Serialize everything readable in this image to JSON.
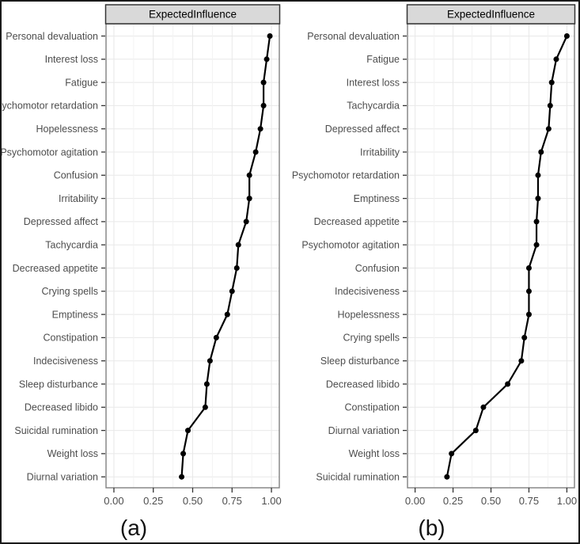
{
  "figure": {
    "captions": [
      "(a)",
      "(b)"
    ]
  },
  "style": {
    "outer_border": "#1a1a1a",
    "strip_fill": "#d9d9d9",
    "strip_border": "#333333",
    "strip_text_color": "#000000",
    "panel_border": "#808080",
    "grid_major": "#e8e8e8",
    "grid_minor": "#f3f3f3",
    "line_color": "#000000",
    "point_color": "#000000",
    "axis_text_color": "#4d4d4d",
    "tick_color": "#333333",
    "caption_color": "#111111"
  },
  "chart_data": [
    {
      "type": "line",
      "variant": "horizontal-dot-line-centrality",
      "title": "ExpectedInfluence",
      "caption": "(a)",
      "xlabel": "",
      "ylabel": "",
      "xlim": [
        -0.05,
        1.05
      ],
      "x_ticks": [
        0.0,
        0.25,
        0.5,
        0.75,
        1.0
      ],
      "x_tick_labels": [
        "0.00",
        "0.25",
        "0.50",
        "0.75",
        "1.00"
      ],
      "x_minor_ticks": [
        0.125,
        0.375,
        0.625,
        0.875
      ],
      "grid": true,
      "legend": "none",
      "categories": [
        "Personal devaluation",
        "Interest loss",
        "Fatigue",
        "Psychomotor retardation",
        "Hopelessness",
        "Psychomotor agitation",
        "Confusion",
        "Irritability",
        "Depressed affect",
        "Tachycardia",
        "Decreased appetite",
        "Crying spells",
        "Emptiness",
        "Constipation",
        "Indecisiveness",
        "Sleep disturbance",
        "Decreased libido",
        "Suicidal rumination",
        "Weight loss",
        "Diurnal variation"
      ],
      "values": [
        0.99,
        0.97,
        0.95,
        0.95,
        0.93,
        0.9,
        0.86,
        0.86,
        0.84,
        0.79,
        0.78,
        0.75,
        0.72,
        0.65,
        0.61,
        0.59,
        0.58,
        0.47,
        0.44,
        0.43
      ]
    },
    {
      "type": "line",
      "variant": "horizontal-dot-line-centrality",
      "title": "ExpectedInfluence",
      "caption": "(b)",
      "xlabel": "",
      "ylabel": "",
      "xlim": [
        -0.05,
        1.05
      ],
      "x_ticks": [
        0.0,
        0.25,
        0.5,
        0.75,
        1.0
      ],
      "x_tick_labels": [
        "0.00",
        "0.25",
        "0.50",
        "0.75",
        "1.00"
      ],
      "x_minor_ticks": [
        0.125,
        0.375,
        0.625,
        0.875
      ],
      "grid": true,
      "legend": "none",
      "categories": [
        "Personal devaluation",
        "Fatigue",
        "Interest loss",
        "Tachycardia",
        "Depressed affect",
        "Irritability",
        "Psychomotor retardation",
        "Emptiness",
        "Decreased appetite",
        "Psychomotor agitation",
        "Confusion",
        "Indecisiveness",
        "Hopelessness",
        "Crying spells",
        "Sleep disturbance",
        "Decreased libido",
        "Constipation",
        "Diurnal variation",
        "Weight loss",
        "Suicidal rumination"
      ],
      "values": [
        1.0,
        0.93,
        0.9,
        0.89,
        0.88,
        0.83,
        0.81,
        0.81,
        0.8,
        0.8,
        0.75,
        0.75,
        0.75,
        0.72,
        0.7,
        0.61,
        0.45,
        0.4,
        0.24,
        0.21
      ]
    }
  ]
}
